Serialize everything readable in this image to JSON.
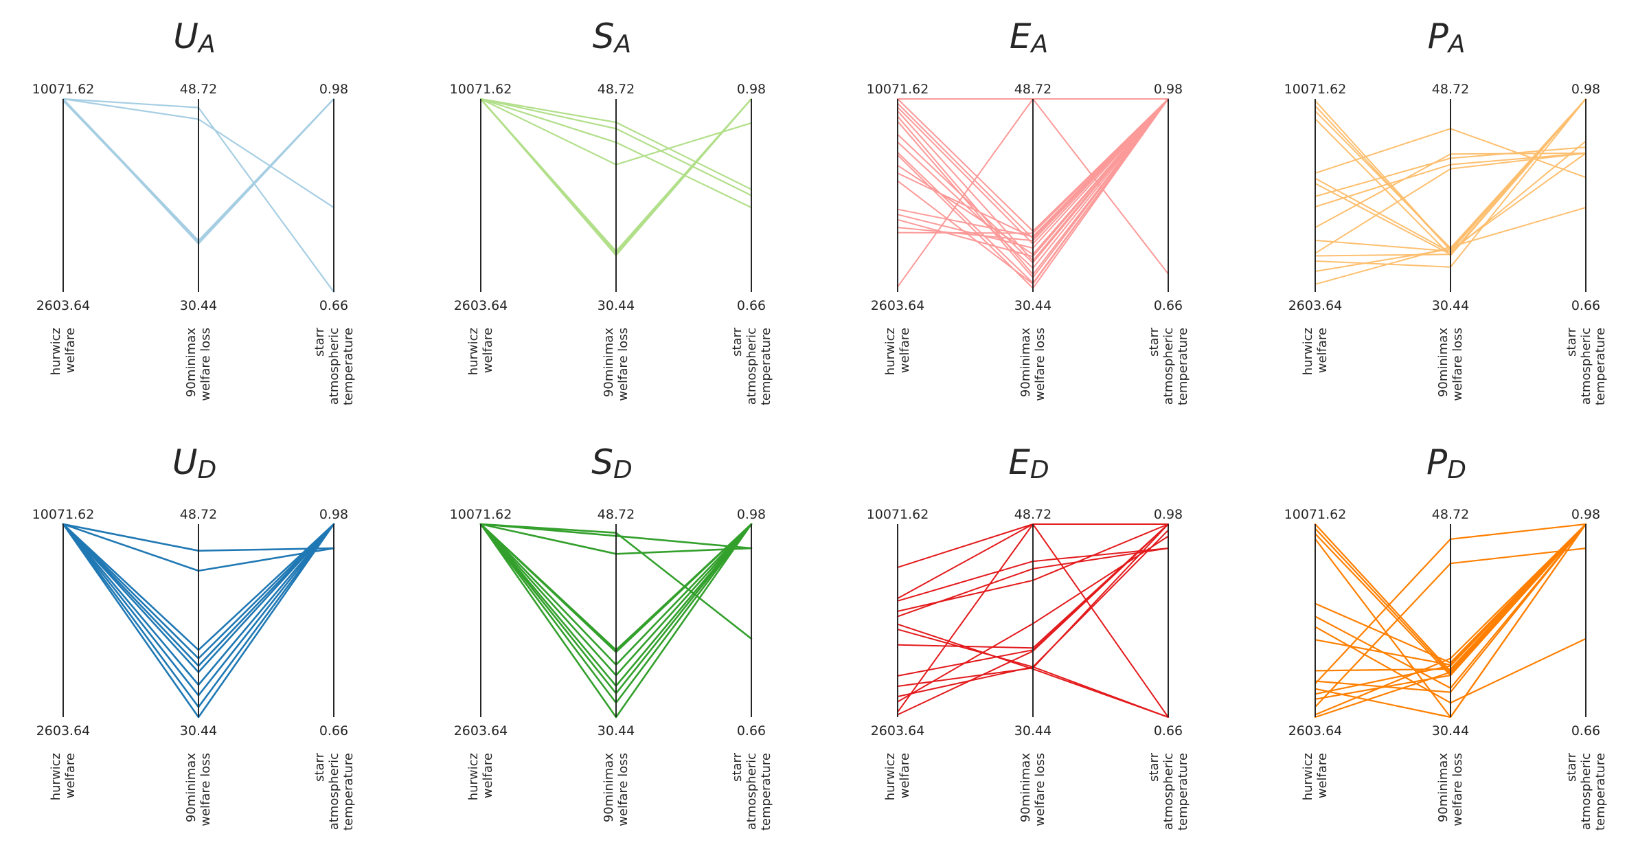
{
  "figure": {
    "axes": [
      {
        "key": "hurwicz_welfare",
        "label_lines": [
          "hurwicz",
          "welfare"
        ],
        "max": 10071.62,
        "min": 2603.64,
        "max_label": "10071.62",
        "min_label": "2603.64"
      },
      {
        "key": "minimax_welfare_loss",
        "label_lines": [
          "90minimax",
          "welfare loss"
        ],
        "max": 48.72,
        "min": 30.44,
        "max_label": "48.72",
        "min_label": "30.44"
      },
      {
        "key": "starr_atmospheric_temperature",
        "label_lines": [
          "starr",
          "atmospheric",
          "temperature"
        ],
        "max": 0.98,
        "min": 0.66,
        "max_label": "0.98",
        "min_label": "0.66"
      }
    ]
  },
  "chart_data": [
    {
      "type": "parallel-coordinates",
      "title": "U",
      "title_sub": "A",
      "color": "#a6cee3",
      "line_width": 2.2,
      "series": [
        [
          10071.62,
          47.9,
          0.66
        ],
        [
          10071.62,
          46.8,
          0.8
        ],
        [
          10071.62,
          35.3,
          0.98
        ],
        [
          10071.62,
          35.1,
          0.98
        ],
        [
          10071.62,
          35.0,
          0.98
        ],
        [
          10000,
          35.2,
          0.98
        ]
      ]
    },
    {
      "type": "parallel-coordinates",
      "title": "S",
      "title_sub": "A",
      "color": "#b2df8a",
      "line_width": 2.2,
      "series": [
        [
          10071.62,
          46.5,
          0.83
        ],
        [
          10071.62,
          45.9,
          0.82
        ],
        [
          10071.62,
          44.6,
          0.8
        ],
        [
          10071.62,
          42.5,
          0.94
        ],
        [
          10071.62,
          34.3,
          0.98
        ],
        [
          10071.62,
          34.1,
          0.98
        ],
        [
          10071.62,
          33.9,
          0.98
        ],
        [
          10050,
          34.2,
          0.98
        ]
      ]
    },
    {
      "type": "parallel-coordinates",
      "title": "E",
      "title_sub": "A",
      "color": "#fb9a99",
      "line_width": 2.0,
      "series": [
        [
          10071.62,
          36.2,
          0.98
        ],
        [
          9900,
          35.5,
          0.98
        ],
        [
          9750,
          35.0,
          0.98
        ],
        [
          9600,
          33.4,
          0.98
        ],
        [
          9400,
          32.1,
          0.98
        ],
        [
          9200,
          31.8,
          0.98
        ],
        [
          8700,
          33.2,
          0.98
        ],
        [
          8400,
          32.7,
          0.98
        ],
        [
          8000,
          31.3,
          0.98
        ],
        [
          7900,
          30.8,
          0.98
        ],
        [
          7500,
          34.0,
          0.98
        ],
        [
          7200,
          35.6,
          0.98
        ],
        [
          6900,
          31.2,
          0.98
        ],
        [
          5800,
          35.7,
          0.98
        ],
        [
          5600,
          34.6,
          0.98
        ],
        [
          5400,
          33.8,
          0.98
        ],
        [
          5100,
          35.3,
          0.98
        ],
        [
          4900,
          36.0,
          0.98
        ],
        [
          2800,
          48.72,
          0.98
        ],
        [
          10071.62,
          48.72,
          0.69
        ]
      ]
    },
    {
      "type": "parallel-coordinates",
      "title": "P",
      "title_sub": "A",
      "color": "#fdbf6f",
      "line_width": 2.0,
      "series": [
        [
          10000,
          34.4,
          0.98
        ],
        [
          9600,
          34.6,
          0.98
        ],
        [
          9300,
          33.9,
          0.98
        ],
        [
          7200,
          45.9,
          0.85
        ],
        [
          7000,
          34.2,
          0.91
        ],
        [
          6800,
          34.0,
          0.98
        ],
        [
          6300,
          43.1,
          0.9
        ],
        [
          5900,
          42.5,
          0.89
        ],
        [
          5100,
          43.5,
          0.89
        ],
        [
          4600,
          34.3,
          0.98
        ],
        [
          4100,
          42.1,
          0.89
        ],
        [
          4000,
          34.0,
          0.98
        ],
        [
          3800,
          32.8,
          0.98
        ],
        [
          3400,
          34.5,
          0.98
        ],
        [
          2900,
          34.7,
          0.8
        ],
        [
          9800,
          34.4,
          0.89
        ]
      ]
    },
    {
      "type": "parallel-coordinates",
      "title": "U",
      "title_sub": "D",
      "color": "#1f78b4",
      "line_width": 2.6,
      "series": [
        [
          10071.62,
          46.2,
          0.94
        ],
        [
          10071.62,
          44.3,
          0.94
        ],
        [
          10071.62,
          36.8,
          0.98
        ],
        [
          10071.62,
          36.0,
          0.98
        ],
        [
          10071.62,
          35.3,
          0.98
        ],
        [
          10071.62,
          34.7,
          0.98
        ],
        [
          10071.62,
          33.5,
          0.98
        ],
        [
          10071.62,
          32.5,
          0.98
        ],
        [
          10071.62,
          31.4,
          0.98
        ],
        [
          10071.62,
          30.44,
          0.98
        ]
      ]
    },
    {
      "type": "parallel-coordinates",
      "title": "S",
      "title_sub": "D",
      "color": "#33a02c",
      "line_width": 2.6,
      "series": [
        [
          10071.62,
          47.9,
          0.79
        ],
        [
          10071.62,
          47.6,
          0.94
        ],
        [
          10071.62,
          45.9,
          0.94
        ],
        [
          10071.62,
          36.8,
          0.98
        ],
        [
          10071.62,
          36.6,
          0.98
        ],
        [
          10071.62,
          35.4,
          0.98
        ],
        [
          10071.62,
          34.4,
          0.98
        ],
        [
          10071.62,
          33.4,
          0.98
        ],
        [
          10071.62,
          32.7,
          0.98
        ],
        [
          10071.62,
          31.8,
          0.98
        ],
        [
          10071.62,
          30.44,
          0.98
        ]
      ]
    },
    {
      "type": "parallel-coordinates",
      "title": "E",
      "title_sub": "D",
      "color": "#e31a1c",
      "line_width": 2.0,
      "series": [
        [
          8400,
          48.72,
          0.98
        ],
        [
          7200,
          48.72,
          0.98
        ],
        [
          7100,
          45.2,
          0.94
        ],
        [
          6700,
          43.4,
          0.98
        ],
        [
          6500,
          44.5,
          0.94
        ],
        [
          6200,
          35.0,
          0.66
        ],
        [
          6000,
          35.2,
          0.66
        ],
        [
          5400,
          37.0,
          0.98
        ],
        [
          4200,
          36.8,
          0.98
        ],
        [
          3800,
          35.1,
          0.98
        ],
        [
          3400,
          35.2,
          0.97
        ],
        [
          3200,
          39.3,
          0.96
        ],
        [
          2800,
          48.72,
          0.66
        ],
        [
          2700,
          36.7,
          0.98
        ]
      ]
    },
    {
      "type": "parallel-coordinates",
      "title": "P",
      "title_sub": "D",
      "color": "#ff7f00",
      "line_width": 2.2,
      "series": [
        [
          10071.62,
          34.8,
          0.98
        ],
        [
          9900,
          34.6,
          0.98
        ],
        [
          9700,
          34.4,
          0.98
        ],
        [
          9500,
          30.44,
          0.98
        ],
        [
          7000,
          35.6,
          0.98
        ],
        [
          6500,
          33.2,
          0.98
        ],
        [
          6100,
          31.8,
          0.79
        ],
        [
          5600,
          35.4,
          0.98
        ],
        [
          4400,
          35.0,
          0.98
        ],
        [
          3900,
          47.3,
          0.98
        ],
        [
          3700,
          30.44,
          0.98
        ],
        [
          3500,
          35.3,
          0.98
        ],
        [
          3300,
          34.4,
          0.98
        ],
        [
          3000,
          45.0,
          0.94
        ],
        [
          2700,
          36.0,
          0.98
        ],
        [
          2603.64,
          34.7,
          0.98
        ],
        [
          4000,
          32.8,
          0.98
        ]
      ]
    }
  ]
}
